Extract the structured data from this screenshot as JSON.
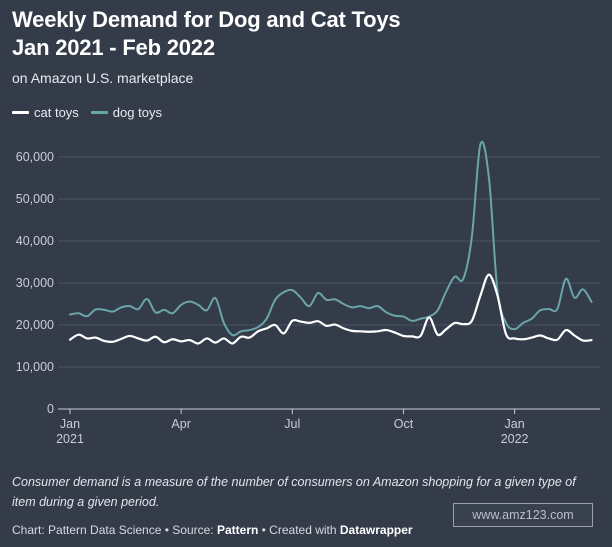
{
  "chart_data": {
    "type": "line",
    "title": "Weekly Demand for Dog and Cat Toys Jan 2021 - Feb 2022",
    "subtitle": "on Amazon U.S. marketplace",
    "xlabel": "",
    "ylabel": "",
    "ylim": [
      0,
      65000
    ],
    "y_ticks": [
      0,
      10000,
      20000,
      30000,
      40000,
      50000,
      60000
    ],
    "y_tick_labels": [
      "0",
      "10,000",
      "20,000",
      "30,000",
      "40,000",
      "50,000",
      "60,000"
    ],
    "x_tick_labels": [
      {
        "week": 0,
        "label": "Jan",
        "sub": "2021"
      },
      {
        "week": 13,
        "label": "Apr",
        "sub": ""
      },
      {
        "week": 26,
        "label": "Jul",
        "sub": ""
      },
      {
        "week": 39,
        "label": "Oct",
        "sub": ""
      },
      {
        "week": 52,
        "label": "Jan",
        "sub": "2022"
      }
    ],
    "x": [
      0,
      1,
      2,
      3,
      4,
      5,
      6,
      7,
      8,
      9,
      10,
      11,
      12,
      13,
      14,
      15,
      16,
      17,
      18,
      19,
      20,
      21,
      22,
      23,
      24,
      25,
      26,
      27,
      28,
      29,
      30,
      31,
      32,
      33,
      34,
      35,
      36,
      37,
      38,
      39,
      40,
      41,
      42,
      43,
      44,
      45,
      46,
      47,
      48,
      49,
      50,
      51,
      52,
      53,
      54,
      55,
      56,
      57,
      58,
      59,
      60,
      61
    ],
    "series": [
      {
        "name": "cat toys",
        "color": "#ffffff",
        "values": [
          16500,
          17700,
          16800,
          17000,
          16200,
          16000,
          16700,
          17400,
          16800,
          16300,
          17200,
          15900,
          16600,
          16100,
          16400,
          15600,
          16800,
          15800,
          16800,
          15600,
          17200,
          17000,
          18500,
          19200,
          20000,
          18000,
          21000,
          20800,
          20500,
          20900,
          19800,
          20100,
          19200,
          18600,
          18500,
          18400,
          18500,
          18800,
          18200,
          17400,
          17300,
          17400,
          21800,
          17700,
          19000,
          20500,
          20200,
          21000,
          27000,
          32000,
          27000,
          17800,
          16800,
          16600,
          17000,
          17500,
          16800,
          16500,
          18800,
          17500,
          16300,
          16400
        ]
      },
      {
        "name": "dog toys",
        "color": "#6aa5aa",
        "values": [
          22500,
          22800,
          22100,
          23700,
          23600,
          23200,
          24200,
          24500,
          23800,
          26200,
          23000,
          23600,
          22800,
          24800,
          25600,
          24800,
          23500,
          26400,
          20500,
          17600,
          18500,
          18800,
          19500,
          21500,
          26000,
          27800,
          28300,
          26500,
          24500,
          27600,
          26000,
          26100,
          25000,
          24200,
          24500,
          24000,
          24500,
          23000,
          22200,
          22000,
          21000,
          21500,
          22000,
          23500,
          28000,
          31500,
          31000,
          41000,
          63000,
          55000,
          28000,
          20500,
          19000,
          20500,
          21500,
          23500,
          23800,
          23800,
          31000,
          26500,
          28500,
          25500
        ]
      }
    ]
  },
  "notes": "Consumer demand is a measure of the number of consumers on Amazon shopping for a given type of item during a given period.",
  "credits": {
    "chart_prefix": "Chart: Pattern Data Science • Source: ",
    "source": "Pattern",
    "created_prefix": " • Created with ",
    "tool": "Datawrapper"
  },
  "watermark": "www.amz123.com"
}
